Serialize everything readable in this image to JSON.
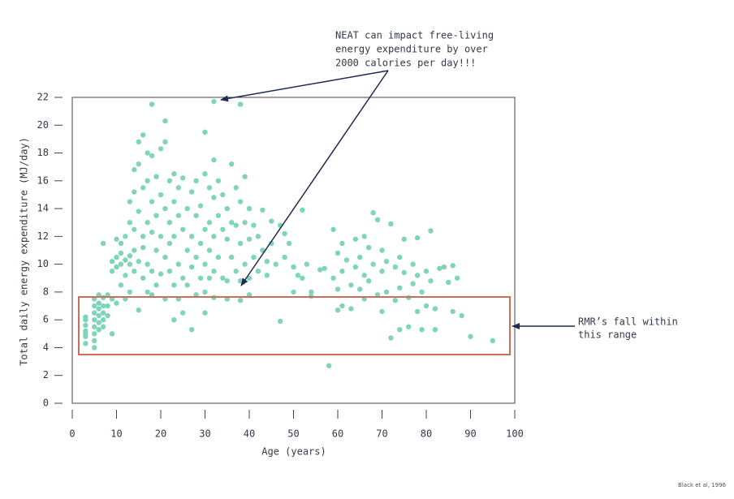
{
  "chart_data": {
    "type": "scatter",
    "xlabel": "Age (years)",
    "ylabel": "Total daily energy expenditure (MJ/day)",
    "annotations": [
      "NEAT can impact free-living",
      "energy expenditure by over",
      "2000 calories per day!!!",
      "RMR’s fall within",
      "this range"
    ],
    "source": "Black et al, 1996",
    "color": "#7fd4b9",
    "xlim": [
      0,
      100
    ],
    "ylim": [
      0,
      22
    ],
    "xticks": [
      0,
      10,
      20,
      30,
      40,
      50,
      60,
      70,
      80,
      90,
      100
    ],
    "yticks": [
      0,
      2,
      4,
      6,
      8,
      10,
      12,
      14,
      16,
      18,
      20,
      22
    ],
    "x": [
      3,
      3,
      3,
      3,
      3,
      3,
      3,
      5,
      5,
      5,
      5,
      5,
      5,
      5,
      5,
      6,
      6,
      6,
      6,
      6,
      6,
      7,
      7,
      7,
      7,
      7,
      7,
      8,
      8,
      8,
      9,
      9,
      9,
      9,
      10,
      10,
      10,
      10,
      11,
      11,
      11,
      11,
      12,
      12,
      12,
      12,
      13,
      13,
      13,
      13,
      13,
      14,
      14,
      14,
      14,
      14,
      15,
      15,
      15,
      15,
      15,
      16,
      16,
      16,
      16,
      16,
      17,
      17,
      17,
      17,
      17,
      18,
      18,
      18,
      18,
      18,
      18,
      19,
      19,
      19,
      19,
      20,
      20,
      20,
      20,
      21,
      21,
      21,
      21,
      21,
      22,
      22,
      22,
      22,
      23,
      23,
      23,
      23,
      23,
      24,
      24,
      24,
      24,
      25,
      25,
      25,
      25,
      26,
      26,
      26,
      27,
      27,
      27,
      27,
      28,
      28,
      28,
      28,
      29,
      29,
      29,
      30,
      30,
      30,
      30,
      30,
      30,
      31,
      31,
      31,
      31,
      32,
      32,
      32,
      32,
      32,
      32,
      33,
      33,
      33,
      34,
      34,
      34,
      35,
      35,
      35,
      35,
      36,
      36,
      36,
      37,
      37,
      37,
      38,
      38,
      38,
      38,
      38,
      39,
      39,
      39,
      40,
      40,
      40,
      40,
      41,
      41,
      42,
      42,
      43,
      43,
      44,
      44,
      45,
      45,
      46,
      47,
      47,
      48,
      48,
      49,
      50,
      50,
      51,
      52,
      52,
      53,
      54,
      54,
      56,
      57,
      58,
      59,
      59,
      60,
      60,
      60,
      61,
      61,
      61,
      62,
      63,
      63,
      64,
      64,
      65,
      65,
      66,
      66,
      66,
      67,
      67,
      68,
      68,
      69,
      69,
      70,
      70,
      70,
      71,
      71,
      72,
      72,
      73,
      73,
      74,
      74,
      74,
      75,
      75,
      76,
      76,
      77,
      77,
      78,
      78,
      78,
      79,
      79,
      80,
      80,
      81,
      81,
      82,
      82,
      83,
      84,
      85,
      86,
      86,
      87,
      88,
      90,
      95
    ],
    "y": [
      4.3,
      4.8,
      5.2,
      5.6,
      6.0,
      6.2,
      5.0,
      4.0,
      4.5,
      5.0,
      5.5,
      6.0,
      6.5,
      7.0,
      7.5,
      5.3,
      5.8,
      6.3,
      6.8,
      7.2,
      7.8,
      5.5,
      6.0,
      6.5,
      7.0,
      7.6,
      11.5,
      6.3,
      7.0,
      7.8,
      5.0,
      7.5,
      9.5,
      10.2,
      7.2,
      9.8,
      10.5,
      11.8,
      8.5,
      10.0,
      10.8,
      11.5,
      7.5,
      9.2,
      10.3,
      12.0,
      10.0,
      10.6,
      13.0,
      14.5,
      8.0,
      11.0,
      12.5,
      15.2,
      16.8,
      9.5,
      13.8,
      17.2,
      18.8,
      10.2,
      6.7,
      19.3,
      15.5,
      12.0,
      9.0,
      11.2,
      18.0,
      16.0,
      13.0,
      10.0,
      8.0,
      21.5,
      17.8,
      14.5,
      12.3,
      9.5,
      7.8,
      16.3,
      13.5,
      11.0,
      8.5,
      18.3,
      15.0,
      12.0,
      9.3,
      20.3,
      18.8,
      14.0,
      10.5,
      7.5,
      16.0,
      13.0,
      11.5,
      9.5,
      16.5,
      14.5,
      12.0,
      8.5,
      6.0,
      15.5,
      13.5,
      10.0,
      7.5,
      16.2,
      12.5,
      9.0,
      6.5,
      14.0,
      11.0,
      8.5,
      15.2,
      12.0,
      9.8,
      5.3,
      16.0,
      13.5,
      10.5,
      7.8,
      14.2,
      11.5,
      9.0,
      19.5,
      16.5,
      12.5,
      10.0,
      8.0,
      6.5,
      15.5,
      13.0,
      11.0,
      9.0,
      21.7,
      17.5,
      14.8,
      12.0,
      9.5,
      7.6,
      16.0,
      13.5,
      10.5,
      15.0,
      12.5,
      9.0,
      14.0,
      11.8,
      8.8,
      7.5,
      17.2,
      13.0,
      10.5,
      15.5,
      12.8,
      9.5,
      21.5,
      14.5,
      11.5,
      8.8,
      7.4,
      16.3,
      13.0,
      10.0,
      14.0,
      11.8,
      9.0,
      7.8,
      12.8,
      10.5,
      12.0,
      9.5,
      13.9,
      11.0,
      10.2,
      9.2,
      13.1,
      11.5,
      10.0,
      12.8,
      5.9,
      12.2,
      10.5,
      11.5,
      9.8,
      8.0,
      9.2,
      13.9,
      9.0,
      10.0,
      8.0,
      7.7,
      9.6,
      9.7,
      2.7,
      12.5,
      9.0,
      10.8,
      8.2,
      6.7,
      11.5,
      9.5,
      7.0,
      10.3,
      8.5,
      6.8,
      11.8,
      9.8,
      10.5,
      8.2,
      12.0,
      9.2,
      7.5,
      11.2,
      8.8,
      13.7,
      10.0,
      13.2,
      7.8,
      11.0,
      9.5,
      6.6,
      10.2,
      8.0,
      12.9,
      4.7,
      9.8,
      7.4,
      10.5,
      8.3,
      5.3,
      11.8,
      9.4,
      7.6,
      5.5,
      10.0,
      8.6,
      11.9,
      9.2,
      6.6,
      8.0,
      5.3,
      9.5,
      7.0,
      12.4,
      8.8,
      5.3,
      6.8,
      9.7,
      9.8,
      8.7,
      9.9,
      6.6,
      9.0,
      6.3,
      4.8,
      4.5
    ]
  }
}
